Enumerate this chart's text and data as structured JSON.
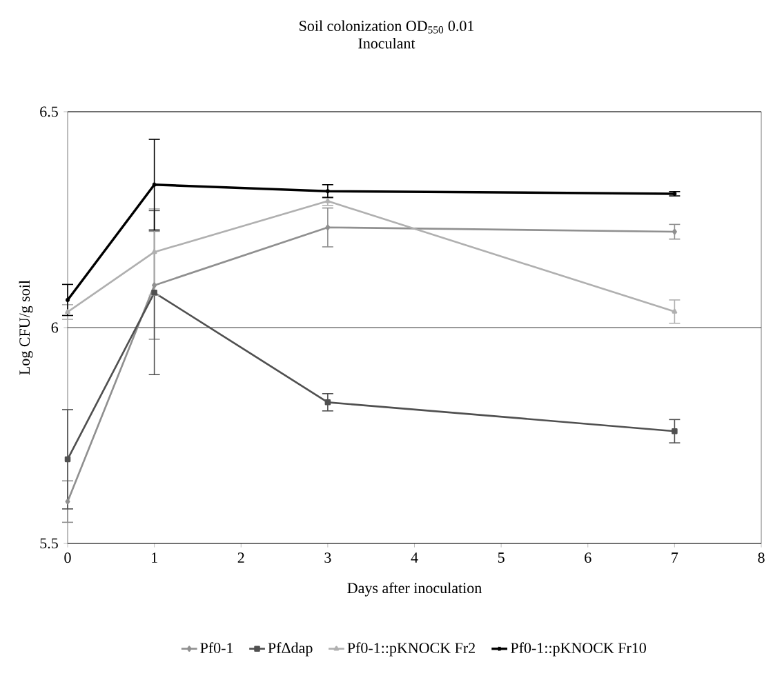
{
  "chart_data": {
    "type": "line",
    "title": "Soil colonization OD$_{550}$ 0.01",
    "subtitle": "Inoculant",
    "xlabel": "Days after inoculation",
    "ylabel": "Log CFU/g soil",
    "x": [
      0,
      1,
      3,
      7
    ],
    "series": [
      {
        "name": "Pf0-1",
        "color": "#909090",
        "marker": "diamond",
        "values": [
          5.597,
          6.098,
          6.232,
          6.222
        ],
        "errors": [
          0.048,
          0.125,
          0.045,
          0.017
        ]
      },
      {
        "name": "PfΔdap",
        "color": "#505050",
        "marker": "square",
        "values": [
          5.695,
          6.081,
          5.827,
          5.76
        ],
        "errors": [
          0.115,
          0.19,
          0.02,
          0.027
        ]
      },
      {
        "name": "Pf0-1::pKNOCK Fr2",
        "color": "#b0b0b0",
        "marker": "triangle",
        "values": [
          6.036,
          6.175,
          6.293,
          6.037
        ],
        "errors": [
          0.017,
          0.1,
          0.01,
          0.027
        ]
      },
      {
        "name": "Pf0-1::pKNOCK Fr10",
        "color": "#000000",
        "marker": "cross",
        "values": [
          6.064,
          6.331,
          6.316,
          6.31
        ],
        "errors": [
          0.036,
          0.105,
          0.015,
          0.005
        ]
      }
    ],
    "xlim": [
      0,
      8
    ],
    "xticks": [
      0,
      1,
      2,
      3,
      4,
      5,
      6,
      7,
      8
    ],
    "ylim": [
      5.5,
      6.5
    ],
    "yticks": [
      5.5,
      6,
      6.5
    ],
    "grid": "y",
    "legend": "bottom",
    "line_style": "solid"
  }
}
